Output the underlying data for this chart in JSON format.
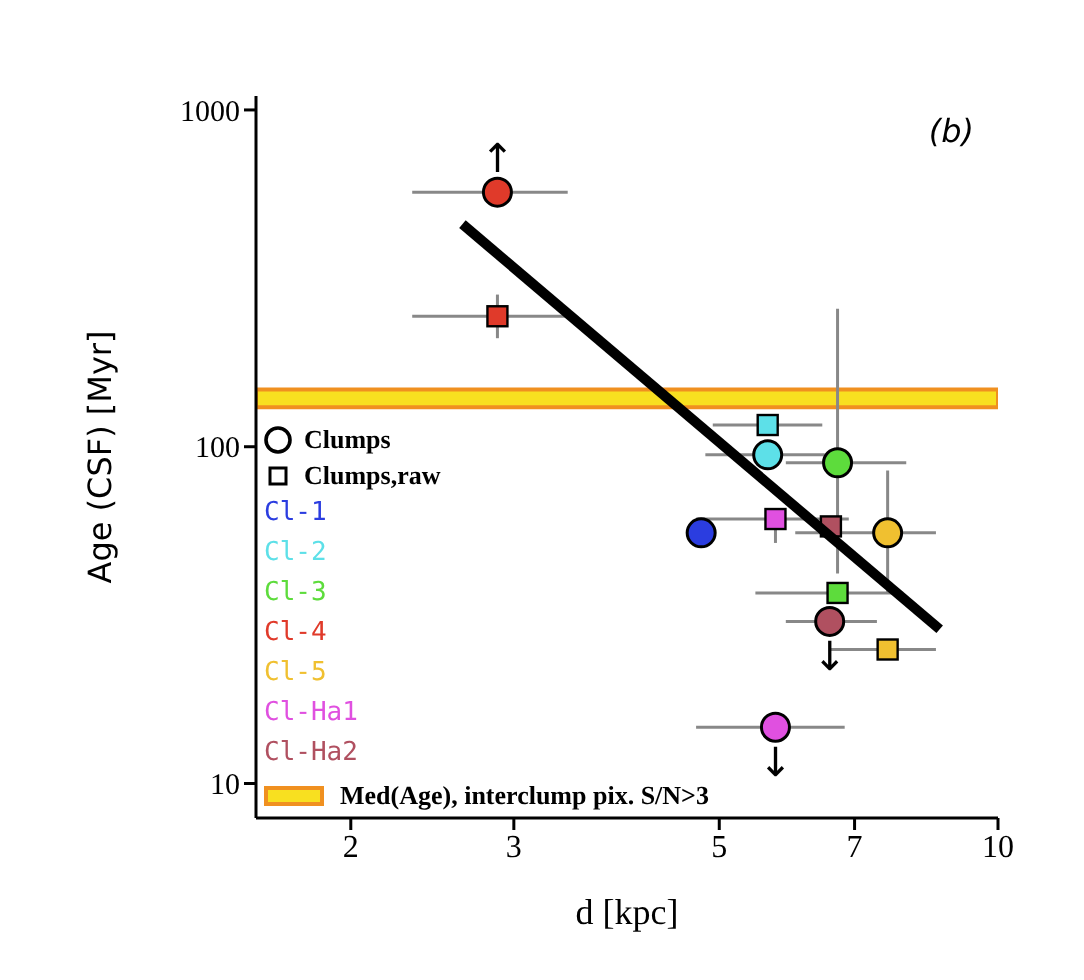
{
  "chart_data": {
    "type": "scatter",
    "xlabel": "d  [kpc]",
    "ylabel": "Age (CSF)  [Myr]",
    "log": "xy",
    "xlim": [
      1.58,
      10
    ],
    "xticks": [
      2,
      3,
      5,
      7,
      10
    ],
    "ylim": [
      7.9,
      1100
    ],
    "yticks": [
      10,
      100,
      1000
    ],
    "legend": "bottom left",
    "series": [
      {
        "name": "Cl-1",
        "color": "#2b3de0",
        "marker": "circle",
        "x": [
          4.78
        ],
        "values": [
          55.5
        ],
        "xerrors": [
          null
        ],
        "errors": [
          null
        ]
      },
      {
        "name": "Cl-2",
        "color": "#5de0e8",
        "marker": "circle",
        "x": [
          5.64
        ],
        "values": [
          94.6
        ],
        "xerrors": [
          [
            4.83,
            6.5
          ]
        ],
        "errors": [
          null
        ]
      },
      {
        "name": "Cl-3",
        "color": "#5ddc3c",
        "marker": "circle",
        "x": [
          6.71
        ],
        "values": [
          89.6
        ],
        "xerrors": [
          [
            5.9,
            7.96
          ]
        ],
        "errors": [
          [
            42,
            257
          ]
        ]
      },
      {
        "name": "Cl-4",
        "color": "#e03a2a",
        "marker": "circle",
        "x": [
          2.88
        ],
        "values": [
          570
        ],
        "xerrors": [
          [
            2.33,
            3.43
          ]
        ],
        "errors": [
          null
        ]
      },
      {
        "name": "Cl-5",
        "color": "#f0c030",
        "marker": "circle",
        "x": [
          7.6
        ],
        "values": [
          55.5
        ],
        "xerrors": [
          [
            6.04,
            8.57
          ]
        ],
        "errors": [
          [
            36.8,
            85
          ]
        ]
      },
      {
        "name": "Cl-Ha1",
        "color": "#e050e0",
        "marker": "circle",
        "x": [
          5.75
        ],
        "values": [
          14.7
        ],
        "xerrors": [
          [
            4.72,
            6.83
          ]
        ],
        "errors": [
          null
        ]
      },
      {
        "name": "Cl-Ha2",
        "color": "#b05060",
        "marker": "circle",
        "x": [
          6.58
        ],
        "values": [
          30.3
        ],
        "xerrors": [
          [
            5.9,
            7.4
          ]
        ],
        "errors": [
          null
        ]
      },
      {
        "color": "#5de0e8",
        "marker": "square",
        "x": [
          5.64
        ],
        "values": [
          116
        ],
        "xerrors": [
          [
            4.92,
            6.46
          ]
        ],
        "errors": [
          null
        ]
      },
      {
        "color": "#5ddc3c",
        "marker": "square",
        "x": [
          6.71
        ],
        "values": [
          36.8
        ],
        "xerrors": [
          [
            5.47,
            7.9
          ]
        ],
        "errors": [
          null
        ]
      },
      {
        "color": "#e03a2a",
        "marker": "square",
        "x": [
          2.88
        ],
        "values": [
          244
        ],
        "xerrors": [
          [
            2.33,
            3.43
          ]
        ],
        "errors": [
          [
            210,
            283
          ]
        ]
      },
      {
        "color": "#f0c030",
        "marker": "square",
        "x": [
          7.6
        ],
        "values": [
          25
        ],
        "xerrors": [
          [
            6.6,
            8.57
          ]
        ],
        "errors": [
          null
        ]
      },
      {
        "color": "#e050e0",
        "marker": "square",
        "x": [
          5.75
        ],
        "values": [
          61
        ],
        "xerrors": [
          [
            4.72,
            6.9
          ]
        ],
        "errors": [
          [
            51.8,
            65.4
          ]
        ]
      },
      {
        "color": "#b05060",
        "marker": "square",
        "x": [
          6.6
        ],
        "values": [
          58
        ],
        "xerrors": [
          null
        ],
        "errors": [
          null
        ]
      },
      {
        "type": "line",
        "color": "#000000",
        "x": [
          2.64,
          8.65
        ],
        "values": [
          458,
          28.7
        ]
      }
    ],
    "bands": [
      {
        "axis": "y",
        "from": 131,
        "to": 148,
        "label": "Med(Age), interclump pix. S/N>3",
        "color": "#f8e020"
      }
    ],
    "annotations": [
      "(b)",
      "Clumps",
      "Clumps,raw",
      {
        "text": "↑",
        "x": 2.88,
        "y": 570
      },
      {
        "text": "↓",
        "x": 6.58,
        "y": 30.3
      },
      {
        "text": "↓",
        "x": 5.75,
        "y": 14.7
      }
    ]
  }
}
